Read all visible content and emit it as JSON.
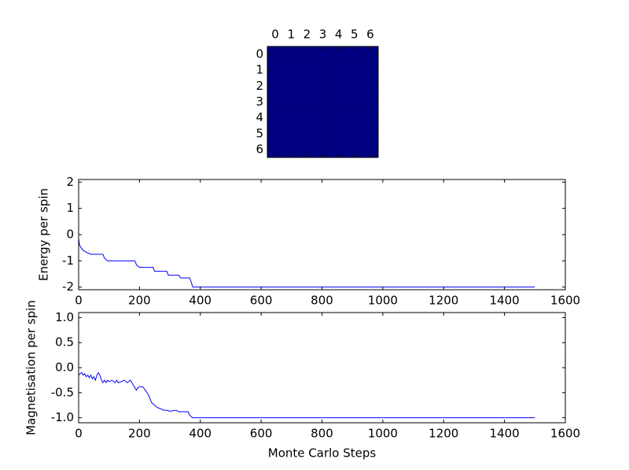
{
  "chart_data": [
    {
      "type": "heatmap",
      "color": "#000080",
      "xticks": [
        0,
        1,
        2,
        3,
        4,
        5,
        6
      ],
      "yticks": [
        0,
        1,
        2,
        3,
        4,
        5,
        6
      ],
      "values": [
        [
          -1,
          -1,
          -1,
          -1,
          -1,
          -1,
          -1
        ],
        [
          -1,
          -1,
          -1,
          -1,
          -1,
          -1,
          -1
        ],
        [
          -1,
          -1,
          -1,
          -1,
          -1,
          -1,
          -1
        ],
        [
          -1,
          -1,
          -1,
          -1,
          -1,
          -1,
          -1
        ],
        [
          -1,
          -1,
          -1,
          -1,
          -1,
          -1,
          -1
        ],
        [
          -1,
          -1,
          -1,
          -1,
          -1,
          -1,
          -1
        ],
        [
          -1,
          -1,
          -1,
          -1,
          -1,
          -1,
          -1
        ]
      ]
    },
    {
      "type": "line",
      "y_label": "Energy per spin",
      "x": [
        0,
        3,
        8,
        15,
        22,
        30,
        40,
        80,
        85,
        95,
        185,
        190,
        200,
        245,
        250,
        290,
        295,
        330,
        335,
        365,
        370,
        375,
        1500
      ],
      "series": [
        {
          "color": "#0000ff",
          "values": [
            -0.15,
            -0.4,
            -0.5,
            -0.6,
            -0.65,
            -0.7,
            -0.75,
            -0.75,
            -0.9,
            -1.0,
            -1.0,
            -1.15,
            -1.25,
            -1.25,
            -1.4,
            -1.4,
            -1.55,
            -1.55,
            -1.65,
            -1.65,
            -1.8,
            -2.0,
            -2.0
          ]
        }
      ],
      "xlim": [
        0,
        1600
      ],
      "xticks": [
        0,
        200,
        400,
        600,
        800,
        1000,
        1200,
        1400,
        1600
      ],
      "ylim": [
        -2.1,
        2.1
      ],
      "yticks": [
        -2,
        -1,
        0,
        1,
        2
      ]
    },
    {
      "type": "line",
      "x_label": "Monte Carlo Steps",
      "y_label": "Magnetisation per spin",
      "x": [
        0,
        5,
        10,
        15,
        20,
        25,
        30,
        35,
        40,
        45,
        50,
        55,
        60,
        65,
        70,
        75,
        80,
        85,
        90,
        95,
        100,
        110,
        120,
        125,
        130,
        140,
        150,
        160,
        170,
        180,
        190,
        195,
        200,
        210,
        220,
        230,
        240,
        250,
        255,
        260,
        270,
        280,
        290,
        300,
        320,
        330,
        360,
        365,
        375,
        1500
      ],
      "series": [
        {
          "color": "#0000ff",
          "values": [
            -0.15,
            -0.12,
            -0.1,
            -0.15,
            -0.12,
            -0.18,
            -0.15,
            -0.2,
            -0.15,
            -0.22,
            -0.18,
            -0.25,
            -0.15,
            -0.1,
            -0.15,
            -0.25,
            -0.3,
            -0.25,
            -0.3,
            -0.25,
            -0.28,
            -0.25,
            -0.3,
            -0.25,
            -0.3,
            -0.28,
            -0.25,
            -0.3,
            -0.25,
            -0.35,
            -0.45,
            -0.4,
            -0.38,
            -0.38,
            -0.45,
            -0.55,
            -0.7,
            -0.75,
            -0.78,
            -0.8,
            -0.82,
            -0.85,
            -0.85,
            -0.87,
            -0.85,
            -0.88,
            -0.88,
            -0.95,
            -1.0,
            -1.0
          ]
        }
      ],
      "xlim": [
        0,
        1600
      ],
      "xticks": [
        0,
        200,
        400,
        600,
        800,
        1000,
        1200,
        1400,
        1600
      ],
      "ylim": [
        -1.1,
        1.1
      ],
      "yticks": [
        {
          "value": -1.0,
          "label": "-1.0"
        },
        -0.5,
        {
          "value": 0.0,
          "label": "0.0"
        },
        0.5,
        {
          "value": 1.0,
          "label": "1.0"
        }
      ]
    }
  ]
}
